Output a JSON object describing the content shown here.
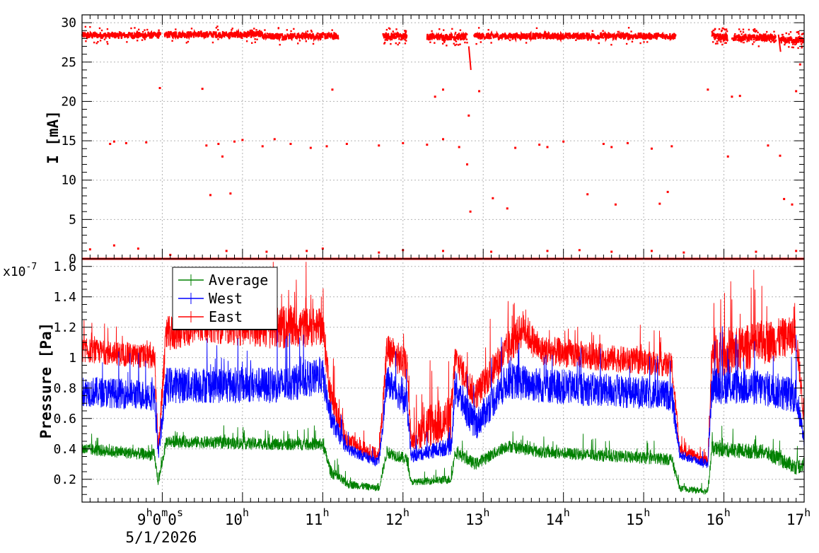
{
  "chart_data": [
    {
      "type": "scatter",
      "title": "",
      "ylabel": "I [mA]",
      "xlabel": "",
      "x_range_hours": [
        8.0,
        17.0
      ],
      "ylim": [
        0,
        31
      ],
      "y_ticks": [
        0,
        5,
        10,
        15,
        20,
        25,
        30
      ],
      "grid": true,
      "series": [
        {
          "color": "#ff0000",
          "segments": [
            {
              "start": 8.0,
              "end": 8.98,
              "level": 28.4
            },
            {
              "start": 9.03,
              "end": 10.25,
              "level": 28.5
            },
            {
              "start": 10.25,
              "end": 11.2,
              "level": 28.3
            },
            {
              "start": 11.75,
              "end": 12.05,
              "level": 28.3
            },
            {
              "start": 12.3,
              "end": 12.8,
              "level": 28.2
            },
            {
              "start": 12.88,
              "end": 15.4,
              "level": 28.3
            },
            {
              "start": 15.85,
              "end": 16.05,
              "level": 28.2
            },
            {
              "start": 16.1,
              "end": 16.65,
              "level": 28.1
            },
            {
              "start": 16.7,
              "end": 17.0,
              "level": 27.8
            }
          ],
          "zero_line": {
            "start": 8.0,
            "end": 17.0,
            "level": 0
          },
          "outliers": [
            [
              8.35,
              14.6
            ],
            [
              8.4,
              14.9
            ],
            [
              8.55,
              14.7
            ],
            [
              8.8,
              14.8
            ],
            [
              8.97,
              21.7
            ],
            [
              9.5,
              21.6
            ],
            [
              9.55,
              14.4
            ],
            [
              9.6,
              8.1
            ],
            [
              9.7,
              14.6
            ],
            [
              9.75,
              13.0
            ],
            [
              9.85,
              8.3
            ],
            [
              9.9,
              14.9
            ],
            [
              10.0,
              15.1
            ],
            [
              10.25,
              14.3
            ],
            [
              10.4,
              15.2
            ],
            [
              10.6,
              14.6
            ],
            [
              10.85,
              14.1
            ],
            [
              11.05,
              14.3
            ],
            [
              11.12,
              21.5
            ],
            [
              11.3,
              14.6
            ],
            [
              11.7,
              14.4
            ],
            [
              12.0,
              14.7
            ],
            [
              12.3,
              14.5
            ],
            [
              12.4,
              20.6
            ],
            [
              12.5,
              21.5
            ],
            [
              12.5,
              15.2
            ],
            [
              12.7,
              14.2
            ],
            [
              12.8,
              12.0
            ],
            [
              12.82,
              18.2
            ],
            [
              12.84,
              6.0
            ],
            [
              12.95,
              21.3
            ],
            [
              13.12,
              7.7
            ],
            [
              13.3,
              6.4
            ],
            [
              13.4,
              14.1
            ],
            [
              13.7,
              14.5
            ],
            [
              13.8,
              14.2
            ],
            [
              14.0,
              14.9
            ],
            [
              14.3,
              8.2
            ],
            [
              14.5,
              14.6
            ],
            [
              14.6,
              14.2
            ],
            [
              14.65,
              6.9
            ],
            [
              14.8,
              14.7
            ],
            [
              15.1,
              14.0
            ],
            [
              15.2,
              7.0
            ],
            [
              15.3,
              8.5
            ],
            [
              15.35,
              14.3
            ],
            [
              15.8,
              21.5
            ],
            [
              16.05,
              13.0
            ],
            [
              16.1,
              20.6
            ],
            [
              16.2,
              20.7
            ],
            [
              16.55,
              14.4
            ],
            [
              16.7,
              13.1
            ],
            [
              16.75,
              7.6
            ],
            [
              16.85,
              6.9
            ],
            [
              16.9,
              21.3
            ],
            [
              16.95,
              24.7
            ],
            [
              8.1,
              1.2
            ],
            [
              8.4,
              1.7
            ],
            [
              8.7,
              1.3
            ],
            [
              9.1,
              0.5
            ],
            [
              9.8,
              1.0
            ],
            [
              10.3,
              0.9
            ],
            [
              10.8,
              1.0
            ],
            [
              11.0,
              1.3
            ],
            [
              11.7,
              0.8
            ],
            [
              12.0,
              1.1
            ],
            [
              12.5,
              1.0
            ],
            [
              13.1,
              0.9
            ],
            [
              13.8,
              1.0
            ],
            [
              14.2,
              1.1
            ],
            [
              14.6,
              0.9
            ],
            [
              15.1,
              1.0
            ],
            [
              15.5,
              0.8
            ],
            [
              16.4,
              0.9
            ],
            [
              16.9,
              1.0
            ]
          ],
          "transition_ramps": [
            {
              "x": 12.82,
              "from": 27.0,
              "to": 24.0
            },
            {
              "x": 16.68,
              "from": 28.5,
              "to": 26.3
            }
          ]
        }
      ]
    },
    {
      "type": "line",
      "title": "",
      "ylabel": "Pressure [Pa]",
      "xlabel": "",
      "y_multiplier": "x10",
      "y_exponent": "-7",
      "ylim": [
        0.05,
        1.65
      ],
      "y_ticks": [
        0.2,
        0.4,
        0.6,
        0.8,
        1.0,
        1.2,
        1.4,
        1.6
      ],
      "y_tick_labels": [
        "0.2",
        "0.4",
        "0.6",
        "0.8",
        "1",
        "1.2",
        "1.4",
        "1.6"
      ],
      "x_ticks": [
        9,
        10,
        11,
        12,
        13,
        14,
        15,
        16,
        17
      ],
      "x_tick_labels": [
        "9",
        "10",
        "11",
        "12",
        "13",
        "14",
        "15",
        "16",
        "17"
      ],
      "x_tick_suffix": "h",
      "first_label_extra": {
        "m": "0",
        "m_sup": "m",
        "s": "0",
        "s_sup": "s"
      },
      "date_label": "5/1/2026",
      "grid": true,
      "legend": {
        "position": "top-left",
        "entries": [
          {
            "label": "Average",
            "color": "#008000"
          },
          {
            "label": "West",
            "color": "#0000ff"
          },
          {
            "label": "East",
            "color": "#ff0000"
          }
        ]
      },
      "series": [
        {
          "name": "East",
          "color": "#ff0000",
          "profile": [
            [
              8.0,
              1.05,
              0.08
            ],
            [
              8.9,
              1.0,
              0.08
            ],
            [
              8.95,
              0.4,
              0.05
            ],
            [
              9.05,
              1.15,
              0.12
            ],
            [
              9.5,
              1.22,
              0.12
            ],
            [
              10.5,
              1.2,
              0.15
            ],
            [
              11.0,
              1.2,
              0.12
            ],
            [
              11.1,
              0.75,
              0.1
            ],
            [
              11.3,
              0.45,
              0.06
            ],
            [
              11.7,
              0.35,
              0.05
            ],
            [
              11.8,
              1.05,
              0.12
            ],
            [
              12.05,
              0.95,
              0.1
            ],
            [
              12.1,
              0.45,
              0.05
            ],
            [
              12.3,
              0.55,
              0.15
            ],
            [
              12.6,
              0.6,
              0.15
            ],
            [
              12.65,
              1.0,
              0.1
            ],
            [
              12.9,
              0.75,
              0.1
            ],
            [
              13.3,
              1.05,
              0.12
            ],
            [
              13.5,
              1.2,
              0.12
            ],
            [
              13.7,
              1.05,
              0.1
            ],
            [
              15.35,
              0.95,
              0.08
            ],
            [
              15.45,
              0.4,
              0.04
            ],
            [
              15.8,
              0.32,
              0.03
            ],
            [
              15.85,
              1.0,
              0.15
            ],
            [
              16.5,
              1.1,
              0.15
            ],
            [
              16.9,
              1.15,
              0.12
            ],
            [
              17.0,
              0.6,
              0.08
            ]
          ]
        },
        {
          "name": "West",
          "color": "#0000ff",
          "profile": [
            [
              8.0,
              0.78,
              0.1
            ],
            [
              8.9,
              0.75,
              0.1
            ],
            [
              8.95,
              0.36,
              0.04
            ],
            [
              9.05,
              0.82,
              0.12
            ],
            [
              10.5,
              0.82,
              0.12
            ],
            [
              11.0,
              0.88,
              0.12
            ],
            [
              11.1,
              0.6,
              0.08
            ],
            [
              11.3,
              0.4,
              0.04
            ],
            [
              11.7,
              0.31,
              0.03
            ],
            [
              11.8,
              0.85,
              0.1
            ],
            [
              12.05,
              0.7,
              0.1
            ],
            [
              12.1,
              0.35,
              0.04
            ],
            [
              12.6,
              0.42,
              0.06
            ],
            [
              12.65,
              0.8,
              0.12
            ],
            [
              12.9,
              0.55,
              0.1
            ],
            [
              13.3,
              0.85,
              0.12
            ],
            [
              13.7,
              0.82,
              0.12
            ],
            [
              15.35,
              0.75,
              0.1
            ],
            [
              15.45,
              0.36,
              0.03
            ],
            [
              15.8,
              0.3,
              0.03
            ],
            [
              15.85,
              0.82,
              0.12
            ],
            [
              16.5,
              0.8,
              0.12
            ],
            [
              16.9,
              0.75,
              0.12
            ],
            [
              17.0,
              0.45,
              0.05
            ]
          ]
        },
        {
          "name": "Average",
          "color": "#008000",
          "profile": [
            [
              8.0,
              0.4,
              0.04
            ],
            [
              8.9,
              0.36,
              0.04
            ],
            [
              8.95,
              0.18,
              0.03
            ],
            [
              9.05,
              0.45,
              0.04
            ],
            [
              10.5,
              0.43,
              0.04
            ],
            [
              11.0,
              0.43,
              0.04
            ],
            [
              11.1,
              0.25,
              0.04
            ],
            [
              11.3,
              0.17,
              0.03
            ],
            [
              11.7,
              0.14,
              0.02
            ],
            [
              11.8,
              0.38,
              0.04
            ],
            [
              12.05,
              0.33,
              0.04
            ],
            [
              12.1,
              0.18,
              0.02
            ],
            [
              12.6,
              0.2,
              0.03
            ],
            [
              12.65,
              0.38,
              0.04
            ],
            [
              12.9,
              0.3,
              0.04
            ],
            [
              13.3,
              0.42,
              0.04
            ],
            [
              13.7,
              0.38,
              0.04
            ],
            [
              15.35,
              0.33,
              0.04
            ],
            [
              15.45,
              0.14,
              0.02
            ],
            [
              15.8,
              0.12,
              0.02
            ],
            [
              15.85,
              0.4,
              0.05
            ],
            [
              16.5,
              0.38,
              0.05
            ],
            [
              16.9,
              0.28,
              0.05
            ],
            [
              17.0,
              0.3,
              0.05
            ]
          ]
        }
      ]
    }
  ]
}
